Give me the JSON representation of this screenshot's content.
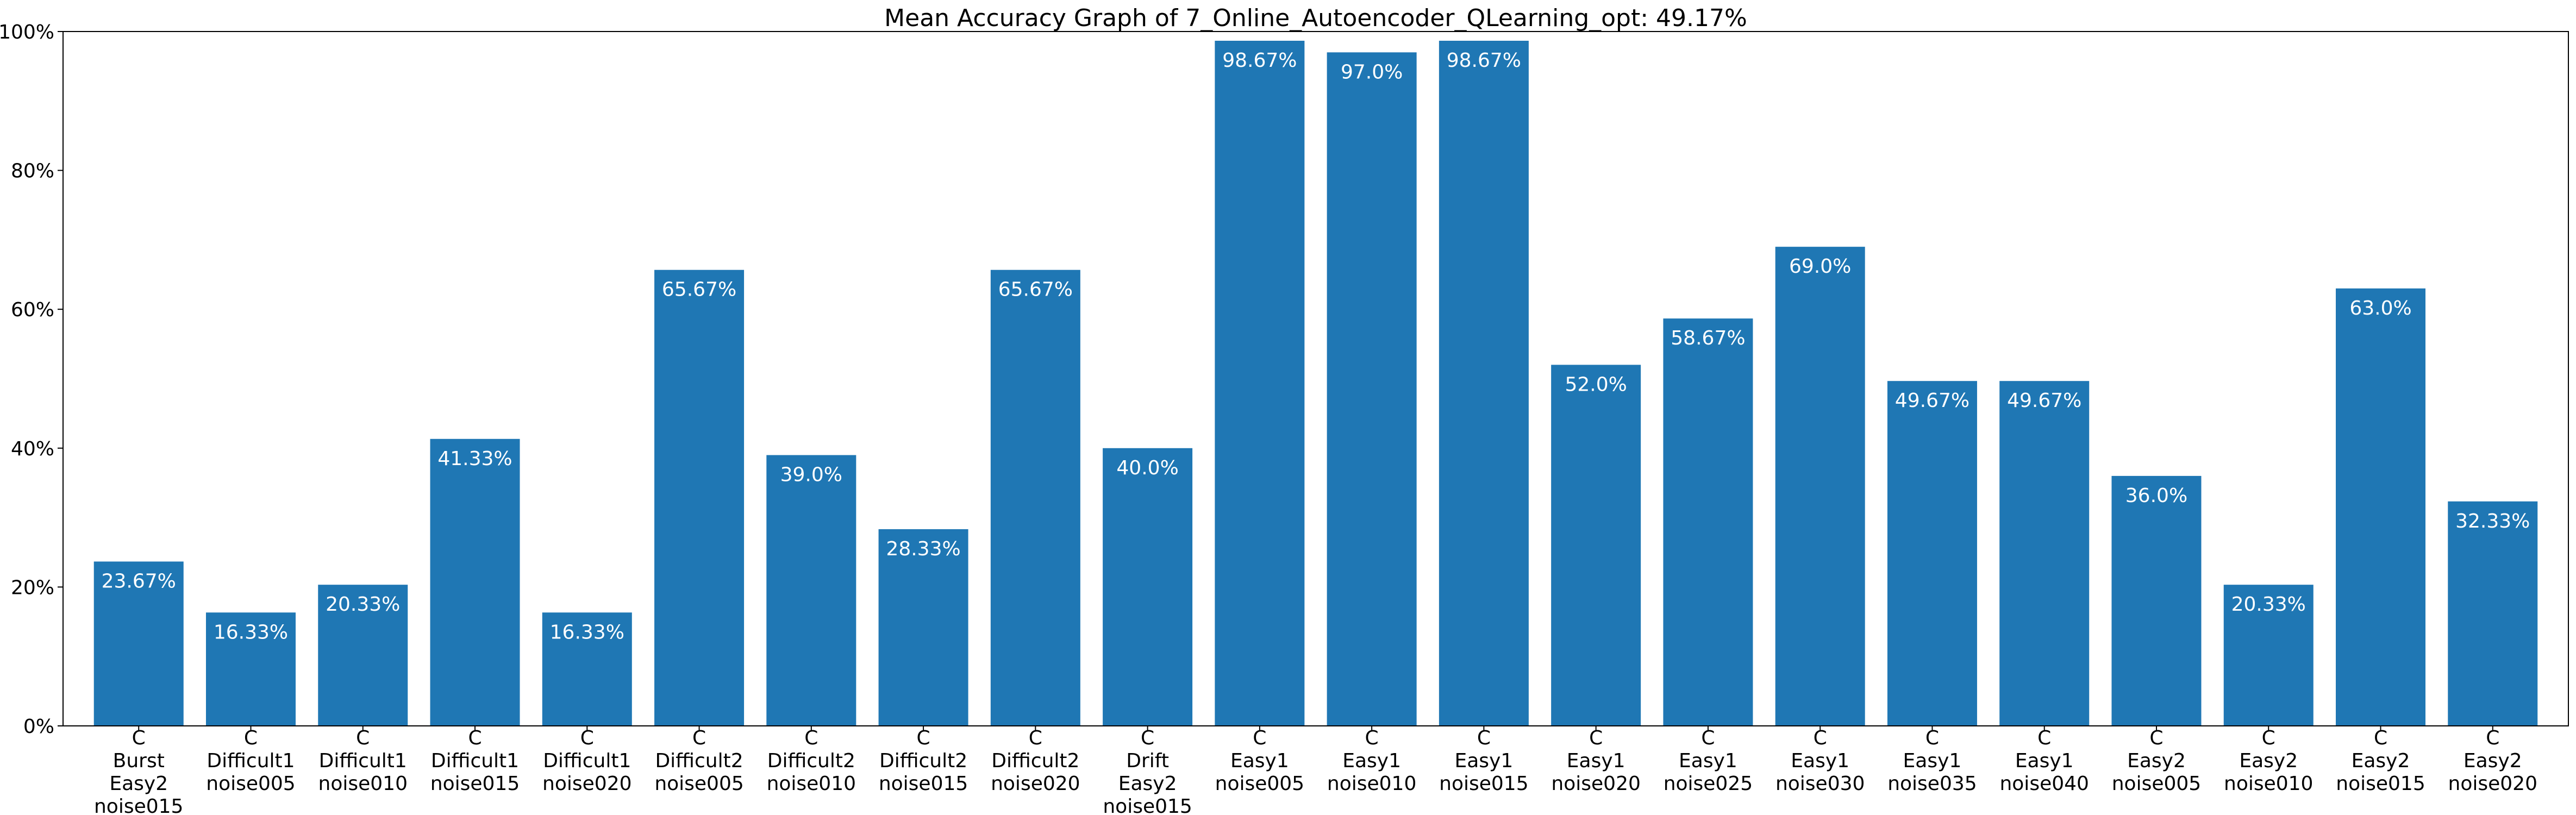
{
  "chart_data": {
    "type": "bar",
    "title": "Mean Accuracy Graph of 7_Online_Autoencoder_QLearning_opt: 49.17%",
    "xlabel": "",
    "ylabel": "",
    "ylim": [
      0,
      100
    ],
    "yticks": [
      0,
      20,
      40,
      60,
      80,
      100
    ],
    "ytick_labels": [
      "0%",
      "20%",
      "40%",
      "60%",
      "80%",
      "100%"
    ],
    "bar_color": "#1f77b4",
    "grid": false,
    "categories": [
      [
        "C",
        "Burst",
        "Easy2",
        "noise015"
      ],
      [
        "C",
        "Difficult1",
        "noise005"
      ],
      [
        "C",
        "Difficult1",
        "noise010"
      ],
      [
        "C",
        "Difficult1",
        "noise015"
      ],
      [
        "C",
        "Difficult1",
        "noise020"
      ],
      [
        "C",
        "Difficult2",
        "noise005"
      ],
      [
        "C",
        "Difficult2",
        "noise010"
      ],
      [
        "C",
        "Difficult2",
        "noise015"
      ],
      [
        "C",
        "Difficult2",
        "noise020"
      ],
      [
        "C",
        "Drift",
        "Easy2",
        "noise015"
      ],
      [
        "C",
        "Easy1",
        "noise005"
      ],
      [
        "C",
        "Easy1",
        "noise010"
      ],
      [
        "C",
        "Easy1",
        "noise015"
      ],
      [
        "C",
        "Easy1",
        "noise020"
      ],
      [
        "C",
        "Easy1",
        "noise025"
      ],
      [
        "C",
        "Easy1",
        "noise030"
      ],
      [
        "C",
        "Easy1",
        "noise035"
      ],
      [
        "C",
        "Easy1",
        "noise040"
      ],
      [
        "C",
        "Easy2",
        "noise005"
      ],
      [
        "C",
        "Easy2",
        "noise010"
      ],
      [
        "C",
        "Easy2",
        "noise015"
      ],
      [
        "C",
        "Easy2",
        "noise020"
      ]
    ],
    "values": [
      23.67,
      16.33,
      20.33,
      41.33,
      16.33,
      65.67,
      39.0,
      28.33,
      65.67,
      40.0,
      98.67,
      97.0,
      98.67,
      52.0,
      58.67,
      69.0,
      49.67,
      49.67,
      36.0,
      20.33,
      63.0,
      32.33
    ],
    "data_labels": [
      "23.67%",
      "16.33%",
      "20.33%",
      "41.33%",
      "16.33%",
      "65.67%",
      "39.0%",
      "28.33%",
      "65.67%",
      "40.0%",
      "98.67%",
      "97.0%",
      "98.67%",
      "52.0%",
      "58.67%",
      "69.0%",
      "49.67%",
      "49.67%",
      "36.0%",
      "20.33%",
      "63.0%",
      "32.33%"
    ]
  }
}
